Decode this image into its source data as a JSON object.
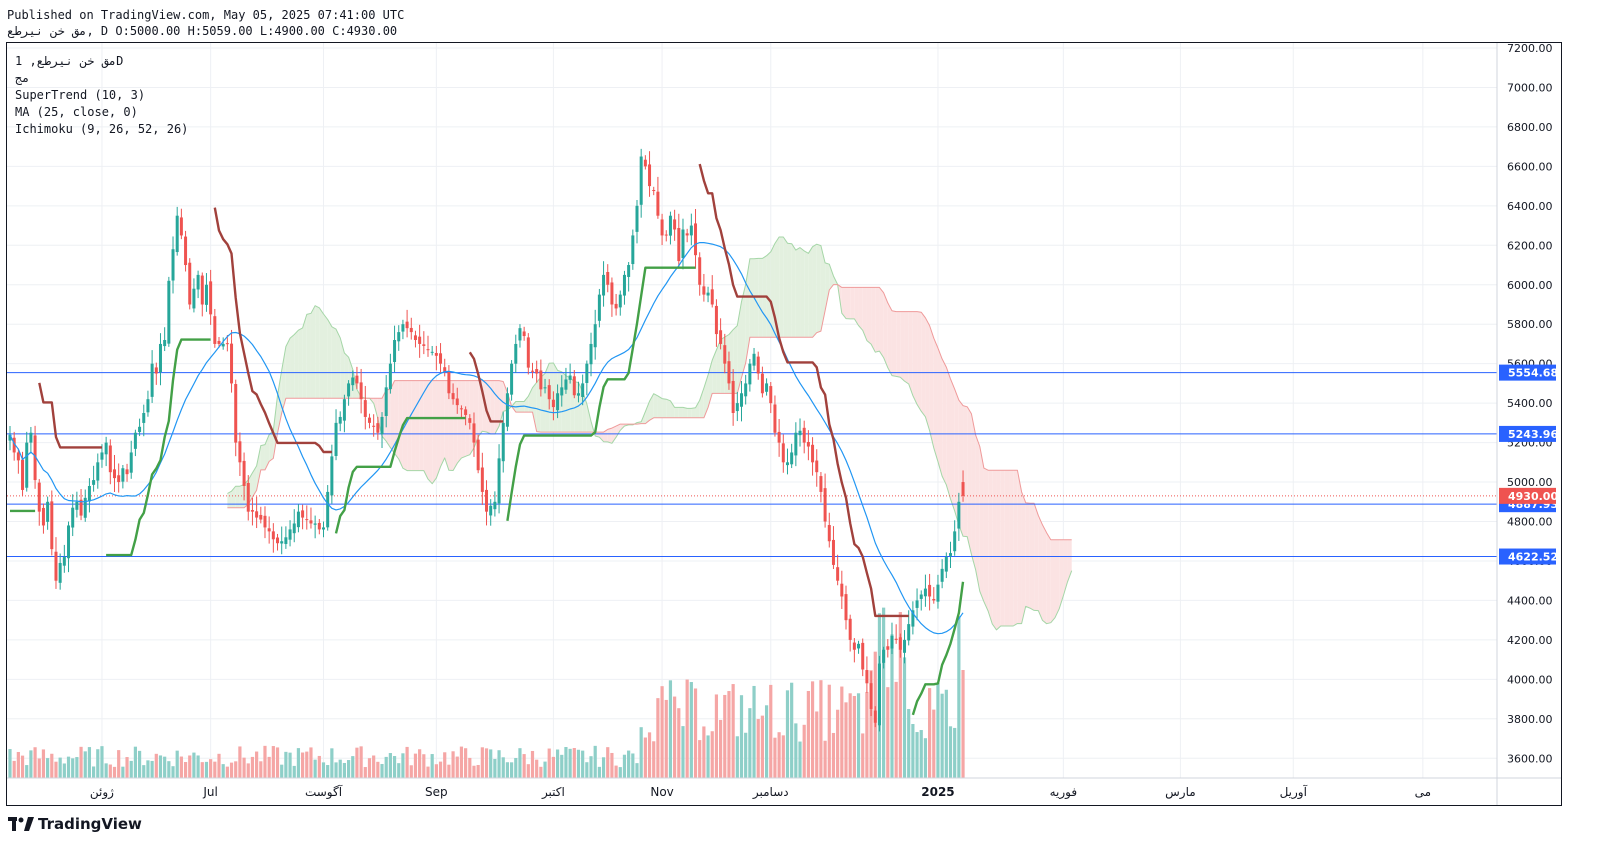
{
  "header": {
    "published": "Published on TradingView.com, May 05, 2025 07:41:00 UTC",
    "symbol_line": "مق خن نیرطع, D O:5000.00 H:5059.00 L:4900.00 C:4930.00"
  },
  "legend": {
    "symbol": "مق خن نیرطع, 1D",
    "exchange": "مج",
    "supertrend": "SuperTrend (10, 3)",
    "ma": "MA (25, close, 0)",
    "ichimoku": "Ichimoku (9, 26, 52, 26)"
  },
  "brand": {
    "name": "TradingView"
  },
  "colors": {
    "up": "#26a69a",
    "down": "#ef5350",
    "up_volume": "#8ecfc8",
    "down_volume": "#f5a6a5",
    "supertrend_up": "#43a047",
    "supertrend_down": "#a1413c",
    "ma": "#2196f3",
    "hline": "#2962ff",
    "cloud_bull": "#e3f0df",
    "cloud_bear": "#fbe3e3",
    "last_price": "#ef5350",
    "label_blue": "#2962ff"
  },
  "chart_data": {
    "type": "candlestick",
    "interval": "1D",
    "last": {
      "open": 5000.0,
      "high": 5059.0,
      "low": 4900.0,
      "close": 4930.0
    },
    "ylim": [
      3500,
      7250
    ],
    "y_ticks": [
      "7200.00",
      "7000.00",
      "6800.00",
      "6600.00",
      "6400.00",
      "6200.00",
      "6000.00",
      "5800.00",
      "5600.00",
      "5400.00",
      "5200.00",
      "5000.00",
      "4800.00",
      "4600.00",
      "4400.00",
      "4200.00",
      "4000.00",
      "3800.00",
      "3600.00"
    ],
    "x_labels": [
      {
        "i": 22,
        "label": "ژوئن"
      },
      {
        "i": 48,
        "label": "Jul"
      },
      {
        "i": 75,
        "label": "آگوست"
      },
      {
        "i": 102,
        "label": "Sep"
      },
      {
        "i": 130,
        "label": "اکتبر"
      },
      {
        "i": 156,
        "label": "Nov"
      },
      {
        "i": 182,
        "label": "دسامبر"
      },
      {
        "i": 222,
        "label": "2025"
      },
      {
        "i": 252,
        "label": "فوریه"
      },
      {
        "i": 280,
        "label": "مارس"
      },
      {
        "i": 307,
        "label": "آوریل"
      },
      {
        "i": 338,
        "label": "می"
      }
    ],
    "horizontal_lines": [
      {
        "value": 5554.68,
        "label": "5554.68"
      },
      {
        "value": 5243.96,
        "label": "5243.96"
      },
      {
        "value": 4887.93,
        "label": "4887.93"
      },
      {
        "value": 4622.52,
        "label": "4622.52"
      }
    ],
    "last_price_label": "4930.00",
    "closes": [
      5240,
      5150,
      5110,
      4960,
      5200,
      5250,
      5010,
      4850,
      4780,
      4900,
      4660,
      4500,
      4590,
      4620,
      4780,
      4870,
      4900,
      4830,
      4920,
      4980,
      5010,
      5100,
      5150,
      5200,
      5050,
      5020,
      5000,
      5070,
      5040,
      5150,
      5250,
      5280,
      5350,
      5420,
      5600,
      5550,
      5700,
      5720,
      6020,
      6180,
      6350,
      6250,
      6100,
      5900,
      5980,
      6050,
      5900,
      6000,
      5850,
      5700,
      5700,
      5700,
      5700,
      5500,
      5200,
      5100,
      4980,
      4850,
      4850,
      4820,
      4810,
      4770,
      4750,
      4710,
      4690,
      4700,
      4720,
      4760,
      4790,
      4850,
      4820,
      4810,
      4790,
      4790,
      4760,
      4770,
      4950,
      5130,
      5300,
      5330,
      5420,
      5500,
      5530,
      5500,
      5420,
      5330,
      5300,
      5280,
      5250,
      5330,
      5480,
      5600,
      5720,
      5760,
      5800,
      5780,
      5760,
      5720,
      5700,
      5690,
      5670,
      5660,
      5640,
      5600,
      5560,
      5450,
      5420,
      5390,
      5370,
      5340,
      5300,
      5200,
      5060,
      4950,
      4850,
      4880,
      4900,
      5120,
      5300,
      5450,
      5600,
      5700,
      5780,
      5740,
      5580,
      5560,
      5550,
      5470,
      5480,
      5420,
      5380,
      5450,
      5480,
      5520,
      5540,
      5440,
      5450,
      5500,
      5600,
      5700,
      5800,
      5950,
      6050,
      6000,
      5900,
      5880,
      5950,
      6050,
      6100,
      6250,
      6400,
      6650,
      6600,
      6500,
      6480,
      6350,
      6250,
      6250,
      6350,
      6280,
      6120,
      6280,
      6250,
      6300,
      6150,
      6000,
      5950,
      5960,
      5900,
      5750,
      5700,
      5600,
      5500,
      5350,
      5400,
      5450,
      5500,
      5600,
      5650,
      5550,
      5450,
      5500,
      5400,
      5250,
      5200,
      5100,
      5100,
      5150,
      5250,
      5260,
      5200,
      5180,
      5100,
      5050,
      4950,
      4800,
      4700,
      4580,
      4500,
      4420,
      4300,
      4200,
      4150,
      4180,
      4050,
      3980,
      3850,
      3780,
      4080,
      4150,
      4150,
      4220,
      4200,
      4150,
      4200,
      4280,
      4350,
      4400,
      4430,
      4460,
      4420,
      4400,
      4480,
      4560,
      4620,
      4640,
      4750,
      4900,
      4930
    ]
  }
}
